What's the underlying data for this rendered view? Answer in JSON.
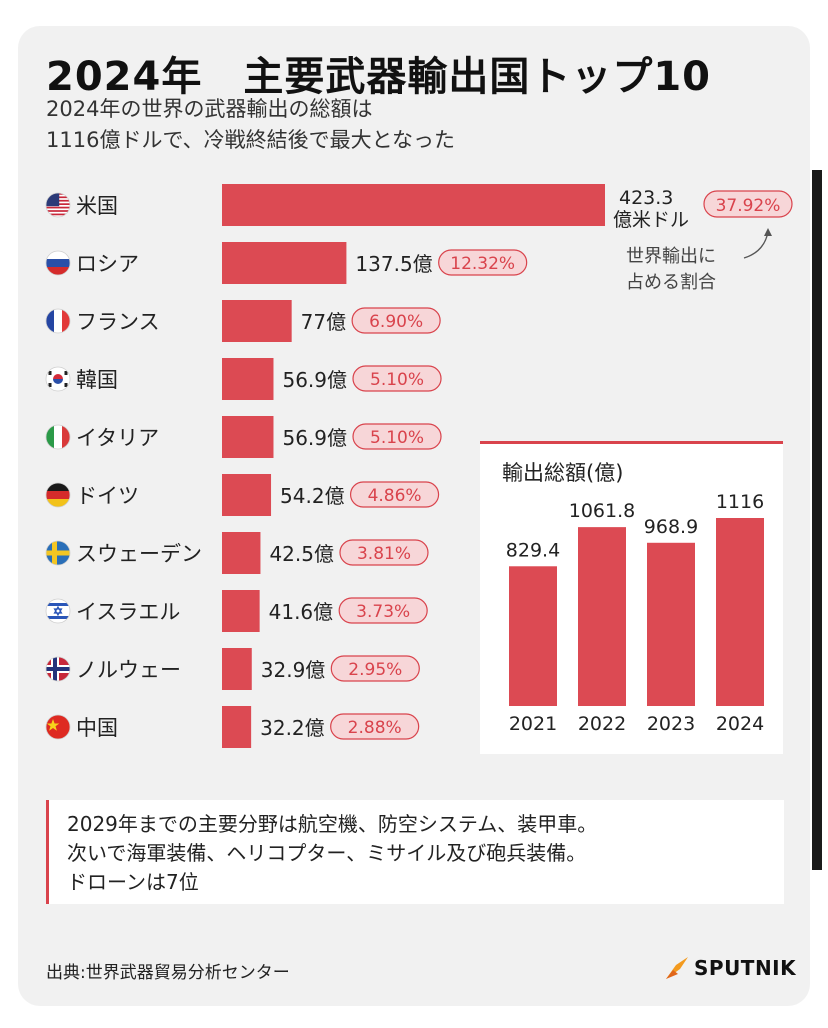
{
  "title": "2024年　主要武器輸出国トップ10",
  "subtitle": {
    "line1": "2024年の世界の武器輸出の総額は",
    "line2": "1116億ドルで、冷戦終結後で最大となった"
  },
  "colors": {
    "bar": "#dc4a53",
    "pill_bg": "#f7d6d8",
    "pill_border": "#d9434c"
  },
  "chart_data": [
    {
      "type": "bar",
      "orientation": "horizontal",
      "title": "2024年　主要武器輸出国トップ10",
      "unit": "億米ドル",
      "categories": [
        "米国",
        "ロシア",
        "フランス",
        "韓国",
        "イタリア",
        "ドイツ",
        "スウェーデン",
        "イスラエル",
        "ノルウェー",
        "中国"
      ],
      "flags": [
        "us-flag-icon",
        "russia-flag-icon",
        "france-flag-icon",
        "korea-flag-icon",
        "italy-flag-icon",
        "germany-flag-icon",
        "sweden-flag-icon",
        "israel-flag-icon",
        "norway-flag-icon",
        "china-flag-icon"
      ],
      "values": [
        423.3,
        137.5,
        77,
        56.9,
        56.9,
        54.2,
        42.5,
        41.6,
        32.9,
        32.2
      ],
      "value_labels": [
        "423.3",
        "137.5億",
        "77億",
        "56.9億",
        "56.9億",
        "54.2億",
        "42.5億",
        "41.6億",
        "32.9億",
        "32.2億"
      ],
      "value_label_suffix_first": "億米ドル",
      "shares": [
        "37.92%",
        "12.32%",
        "6.90%",
        "5.10%",
        "5.10%",
        "4.86%",
        "3.81%",
        "3.73%",
        "2.95%",
        "2.88%"
      ],
      "annotation": {
        "line1": "世界輸出に",
        "line2": "占める割合"
      }
    },
    {
      "type": "bar",
      "orientation": "vertical",
      "title": "輸出総額(億)",
      "categories": [
        "2021",
        "2022",
        "2023",
        "2024"
      ],
      "values": [
        829.4,
        1061.8,
        968.9,
        1116
      ],
      "value_labels": [
        "829.4",
        "1061.8",
        "968.9",
        "1116"
      ]
    }
  ],
  "note": {
    "line1": "2029年までの主要分野は航空機、防空システム、装甲車。",
    "line2": "次いで海軍装備、ヘリコプター、ミサイル及び砲兵装備。",
    "line3": "ドローンは7位"
  },
  "source": "出典:世界武器貿易分析センター",
  "logo": {
    "text": "SPUTNIK",
    "icon": "sputnik-logo-icon"
  }
}
